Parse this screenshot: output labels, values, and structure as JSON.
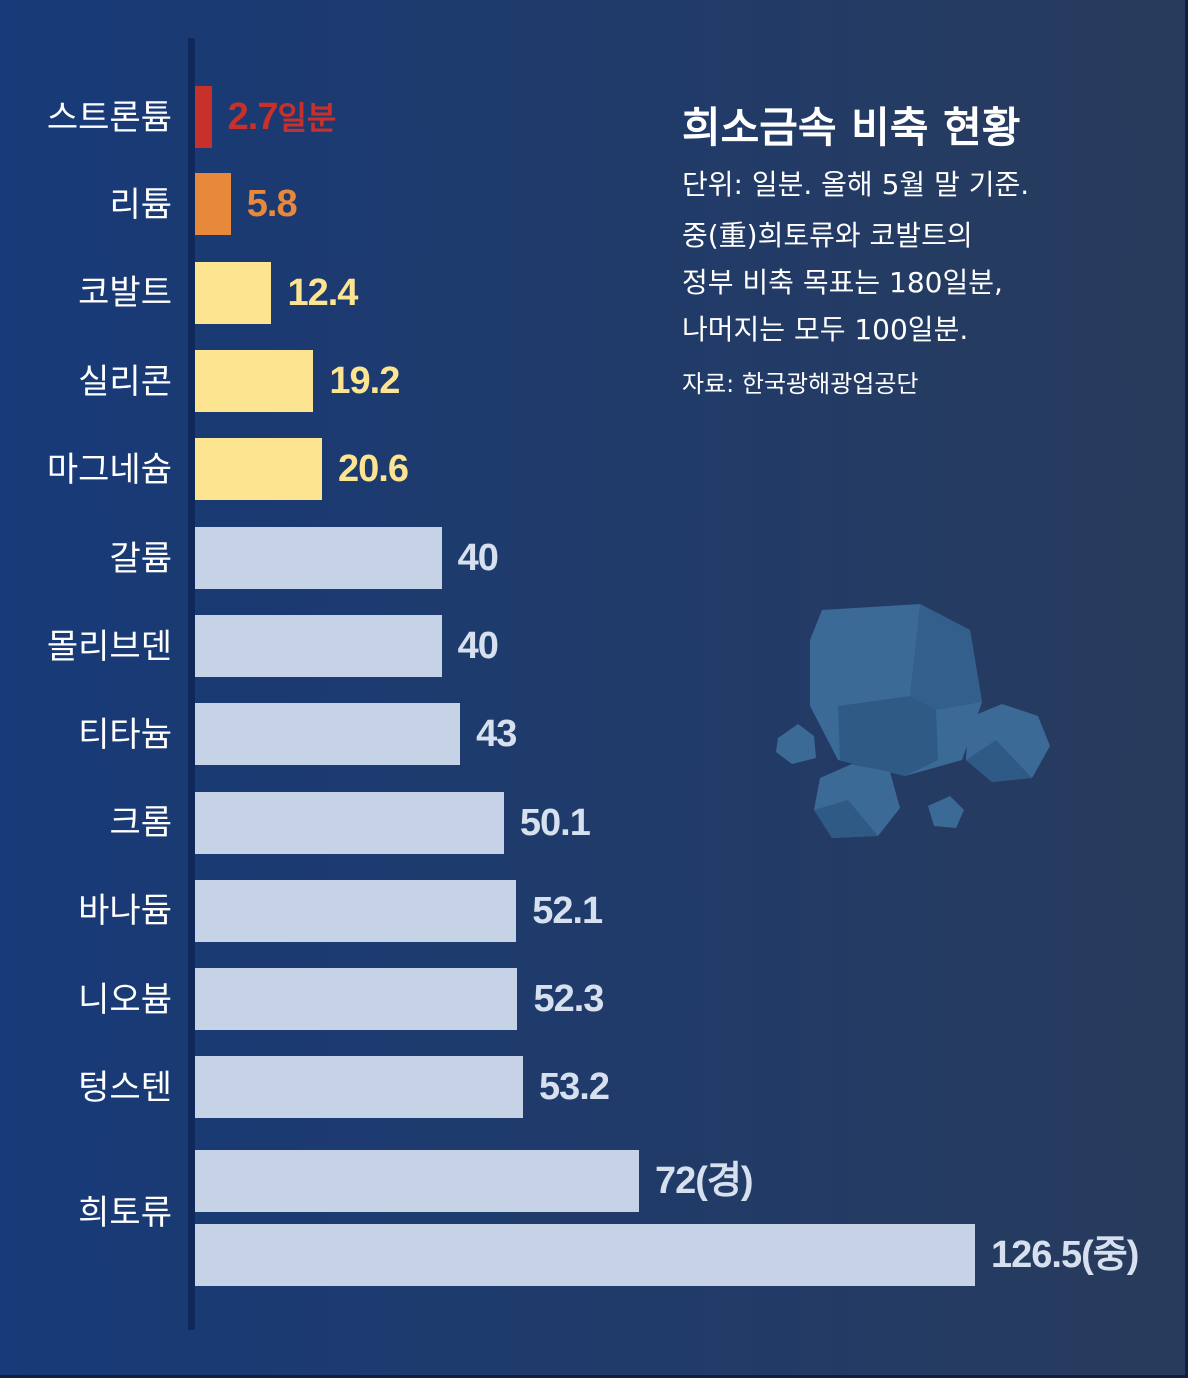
{
  "title": "희소금속 비축 현황",
  "notes": [
    "단위: 일분. 올해 5월 말 기준.",
    "중(重)희토류와 코발트의",
    "정부 비축 목표는 180일분,",
    "나머지는 모두 100일분."
  ],
  "source": "자료: 한국광해광업공단",
  "colors": {
    "critical": "#c8302c",
    "low": "#e8883a",
    "medium": "#fde490",
    "normal": "#c6d2e6",
    "background": "#1f3b6c",
    "value_normal": "#d7e0ee"
  },
  "decoration_icon": "rocks-icon",
  "chart_data": {
    "type": "bar",
    "orientation": "horizontal",
    "unit": "일분",
    "xlim": [
      0,
      130
    ],
    "grid": false,
    "categories": [
      "스트론튬",
      "리튬",
      "코발트",
      "실리콘",
      "마그네슘",
      "갈륨",
      "몰리브덴",
      "티타늄",
      "크롬",
      "바나듐",
      "니오븀",
      "텅스텐",
      "희토류"
    ],
    "bars": [
      {
        "category": "스트론튬",
        "value": 2.7,
        "label": "2.7",
        "suffix": "일분",
        "color": "critical"
      },
      {
        "category": "리튬",
        "value": 5.8,
        "label": "5.8",
        "color": "low"
      },
      {
        "category": "코발트",
        "value": 12.4,
        "label": "12.4",
        "color": "medium"
      },
      {
        "category": "실리콘",
        "value": 19.2,
        "label": "19.2",
        "color": "medium"
      },
      {
        "category": "마그네슘",
        "value": 20.6,
        "label": "20.6",
        "color": "medium"
      },
      {
        "category": "갈륨",
        "value": 40,
        "label": "40",
        "color": "normal"
      },
      {
        "category": "몰리브덴",
        "value": 40,
        "label": "40",
        "color": "normal"
      },
      {
        "category": "티타늄",
        "value": 43,
        "label": "43",
        "color": "normal"
      },
      {
        "category": "크롬",
        "value": 50.1,
        "label": "50.1",
        "color": "normal"
      },
      {
        "category": "바나듐",
        "value": 52.1,
        "label": "52.1",
        "color": "normal"
      },
      {
        "category": "니오븀",
        "value": 52.3,
        "label": "52.3",
        "color": "normal"
      },
      {
        "category": "텅스텐",
        "value": 53.2,
        "label": "53.2",
        "color": "normal"
      },
      {
        "category": "희토류",
        "value": 72,
        "label": "72(경)",
        "color": "normal"
      },
      {
        "category": "희토류",
        "value": 126.5,
        "label": "126.5(중)",
        "color": "normal"
      }
    ]
  }
}
